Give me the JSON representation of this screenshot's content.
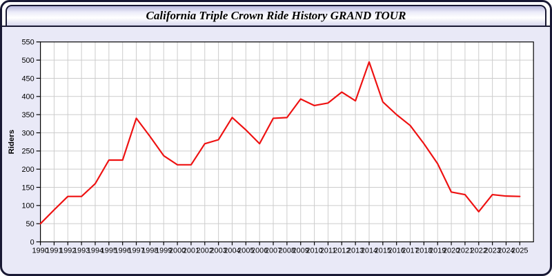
{
  "window": {
    "title_bar": {
      "title": "California Triple Crown Ride History GRAND TOUR"
    }
  },
  "chart_data": {
    "type": "line",
    "title": "California Triple Crown Ride History GRAND TOUR",
    "xlabel": "",
    "ylabel": "Riders",
    "x": [
      1990,
      1991,
      1992,
      1993,
      1994,
      1995,
      1996,
      1997,
      1998,
      1999,
      2000,
      2001,
      2002,
      2003,
      2004,
      2005,
      2006,
      2007,
      2008,
      2009,
      2010,
      2011,
      2012,
      2013,
      2014,
      2015,
      2016,
      2017,
      2018,
      2019,
      2020,
      2021,
      2022,
      2023,
      2024,
      2025
    ],
    "series": [
      {
        "name": "Riders",
        "values": [
          50,
          88,
          125,
          125,
          160,
          225,
          225,
          340,
          290,
          237,
          212,
          212,
          270,
          281,
          342,
          308,
          270,
          340,
          342,
          393,
          375,
          382,
          412,
          388,
          495,
          385,
          350,
          320,
          270,
          215,
          137,
          130,
          83,
          130,
          126,
          125
        ]
      }
    ],
    "ylim": [
      0,
      550
    ],
    "ytick_step": 50,
    "xlim": [
      1990,
      2026
    ],
    "xtick_step": 1,
    "grid": true,
    "legend": false,
    "colors": {
      "line": "#ee1111",
      "plot_background": "#ffffff",
      "grid": "#cccccc",
      "axis": "#000000",
      "page_background": "#e9e9f7",
      "frame_border": "#181833"
    }
  }
}
